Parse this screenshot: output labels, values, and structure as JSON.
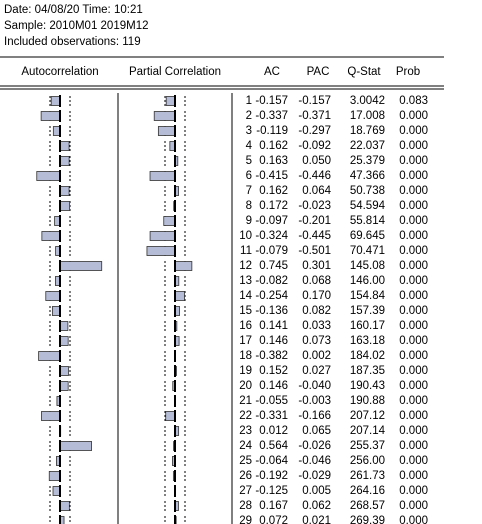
{
  "header": {
    "lines": [
      "Date: 04/08/20   Time: 10:21",
      "Sample: 2010M01 2019M12",
      "Included observations: 119"
    ]
  },
  "table": {
    "columns": [
      "Autocorrelation",
      "Partial Correlation",
      "AC",
      "PAC",
      "Q-Stat",
      "Prob"
    ],
    "rows": [
      [
        "1",
        "-0.157",
        "-0.157",
        "3.0042",
        "0.083"
      ],
      [
        "2",
        "-0.337",
        "-0.371",
        "17.008",
        "0.000"
      ],
      [
        "3",
        "-0.119",
        "-0.297",
        "18.769",
        "0.000"
      ],
      [
        "4",
        "0.162",
        "-0.092",
        "22.037",
        "0.000"
      ],
      [
        "5",
        "0.163",
        "0.050",
        "25.379",
        "0.000"
      ],
      [
        "6",
        "-0.415",
        "-0.446",
        "47.366",
        "0.000"
      ],
      [
        "7",
        "0.162",
        "0.064",
        "50.738",
        "0.000"
      ],
      [
        "8",
        "0.172",
        "-0.023",
        "54.594",
        "0.000"
      ],
      [
        "9",
        "-0.097",
        "-0.201",
        "55.814",
        "0.000"
      ],
      [
        "10",
        "-0.324",
        "-0.445",
        "69.645",
        "0.000"
      ],
      [
        "11",
        "-0.079",
        "-0.501",
        "70.471",
        "0.000"
      ],
      [
        "12",
        "0.745",
        "0.301",
        "145.08",
        "0.000"
      ],
      [
        "13",
        "-0.082",
        "0.068",
        "146.00",
        "0.000"
      ],
      [
        "14",
        "-0.254",
        "0.170",
        "154.84",
        "0.000"
      ],
      [
        "15",
        "-0.136",
        "0.082",
        "157.39",
        "0.000"
      ],
      [
        "16",
        "0.141",
        "0.033",
        "160.17",
        "0.000"
      ],
      [
        "17",
        "0.146",
        "0.073",
        "163.18",
        "0.000"
      ],
      [
        "18",
        "-0.382",
        "0.002",
        "184.02",
        "0.000"
      ],
      [
        "19",
        "0.152",
        "0.027",
        "187.35",
        "0.000"
      ],
      [
        "20",
        "0.146",
        "-0.040",
        "190.43",
        "0.000"
      ],
      [
        "21",
        "-0.055",
        "-0.003",
        "190.88",
        "0.000"
      ],
      [
        "22",
        "-0.331",
        "-0.166",
        "207.12",
        "0.000"
      ],
      [
        "23",
        "0.012",
        "0.065",
        "207.14",
        "0.000"
      ],
      [
        "24",
        "0.564",
        "-0.026",
        "255.37",
        "0.000"
      ],
      [
        "25",
        "-0.064",
        "-0.046",
        "256.00",
        "0.000"
      ],
      [
        "26",
        "-0.192",
        "-0.029",
        "261.73",
        "0.000"
      ],
      [
        "27",
        "-0.125",
        "0.005",
        "264.16",
        "0.000"
      ],
      [
        "28",
        "0.167",
        "0.062",
        "268.57",
        "0.000"
      ],
      [
        "29",
        "0.072",
        "0.021",
        "269.39",
        "0.000"
      ]
    ]
  }
}
